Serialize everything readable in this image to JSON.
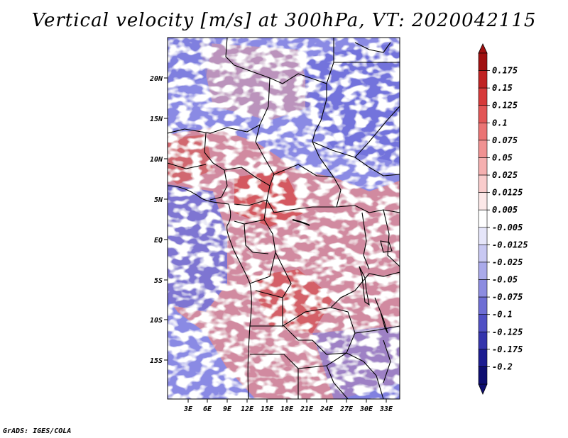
{
  "title": "Vertical velocity [m/s] at 300hPa, VT: 2020042115",
  "credit": "GrADS: IGES/COLA",
  "axes": {
    "lat_labels": [
      "20N",
      "15N",
      "10N",
      "5N",
      "EQ",
      "5S",
      "10S",
      "15S"
    ],
    "lon_labels": [
      "3E",
      "6E",
      "9E",
      "12E",
      "15E",
      "18E",
      "21E",
      "24E",
      "27E",
      "30E",
      "33E"
    ]
  },
  "colorbar": {
    "levels": [
      "0.175",
      "0.15",
      "0.125",
      "0.1",
      "0.075",
      "0.05",
      "0.025",
      "0.0125",
      "0.005",
      "-0.005",
      "-0.0125",
      "-0.025",
      "-0.05",
      "-0.075",
      "-0.1",
      "-0.125",
      "-0.175",
      "-0.2"
    ],
    "colors": [
      "#a01010",
      "#c02222",
      "#d63a3a",
      "#e25656",
      "#ea7474",
      "#f09292",
      "#f5b0b0",
      "#f9cccc",
      "#fce8e8",
      "#ffffff",
      "#e6e6fa",
      "#c8c8f2",
      "#aaaaea",
      "#8c8ce0",
      "#6e6ed4",
      "#5050c4",
      "#3434ac",
      "#1c1c90",
      "#0e0e70"
    ]
  },
  "colors": {
    "positive": "#e06060",
    "negative": "#6a6ade",
    "neutral": "#f4f2fa",
    "border": "#000000"
  }
}
